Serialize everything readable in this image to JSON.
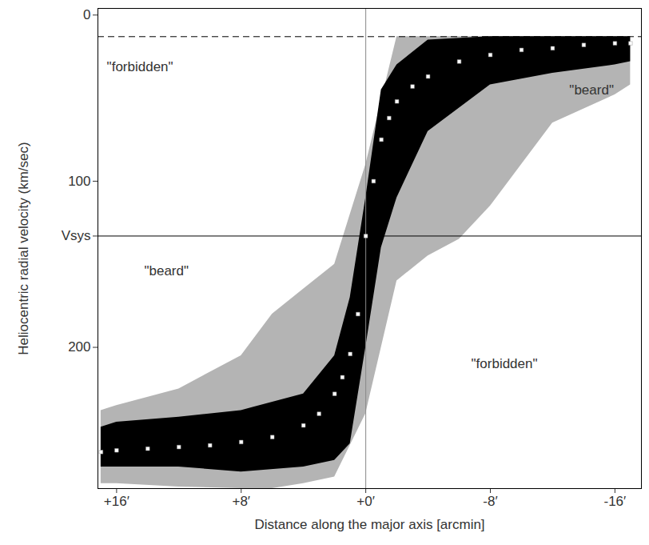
{
  "chart_data": {
    "type": "scatter",
    "x_label": "Distance along the major axis [arcmin]",
    "y_label": "Heliocentric radial velocity (km/sec)",
    "xlim": [
      17.2,
      -17.7
    ],
    "ylim": [
      -4,
      285
    ],
    "xticks": [
      {
        "value": 16,
        "label": "+16′"
      },
      {
        "value": 8,
        "label": "+8′"
      },
      {
        "value": 0,
        "label": "+0′"
      },
      {
        "value": -8,
        "label": "-8′"
      },
      {
        "value": -16,
        "label": "-16′"
      }
    ],
    "yticks": [
      0,
      100,
      {
        "value": 133,
        "label": "Vsys"
      },
      200
    ],
    "grid": false,
    "series": [
      {
        "color": "#ffffff",
        "marker": "square",
        "x": [
          17,
          16,
          14,
          12,
          10,
          8,
          6,
          4,
          3,
          2,
          1.5,
          1,
          0.5,
          0,
          -0.5,
          -1,
          -1.5,
          -2,
          -3,
          -4,
          -6,
          -8,
          -10,
          -12,
          -14,
          -16,
          -17
        ],
        "values": [
          263,
          262,
          261,
          260,
          259,
          257,
          254,
          247,
          240,
          228,
          218,
          204,
          180,
          133,
          100,
          75,
          62,
          52,
          43,
          37,
          28,
          24,
          21,
          20,
          18,
          17,
          17
        ]
      }
    ],
    "bands": [
      {
        "color": "#b4b4b4",
        "x": [
          17,
          16,
          12,
          8,
          6,
          4,
          2,
          0,
          -2,
          -4,
          -6,
          -8,
          -12,
          -16,
          -17
        ],
        "lower": [
          238,
          235,
          225,
          205,
          180,
          165,
          150,
          90,
          13,
          13,
          13,
          13,
          13,
          13,
          13
        ],
        "upper": [
          282,
          282,
          284,
          285,
          285,
          282,
          278,
          240,
          160,
          145,
          135,
          115,
          65,
          48,
          42
        ]
      },
      {
        "color": "#000000",
        "x": [
          17,
          16,
          12,
          8,
          4,
          2,
          1,
          0,
          -1,
          -2,
          -4,
          -8,
          -12,
          -16,
          -17
        ],
        "lower": [
          248,
          245,
          242,
          238,
          228,
          205,
          170,
          110,
          45,
          30,
          15,
          13,
          13,
          13,
          13
        ],
        "upper": [
          272,
          272,
          272,
          275,
          272,
          268,
          258,
          200,
          140,
          110,
          70,
          42,
          35,
          30,
          28
        ]
      }
    ],
    "hlines": [
      {
        "value": 133,
        "line_style": "solid"
      },
      {
        "value": 13,
        "line_style": "dashed"
      }
    ],
    "vlines": [
      {
        "value": 0,
        "line_style": "solid"
      }
    ],
    "annotations": [
      {
        "text": "\"forbidden\"",
        "x": 14.5,
        "y": 31
      },
      {
        "text": "\"beard\"",
        "x": -14.5,
        "y": 45
      },
      {
        "text": "\"beard\"",
        "x": 12.8,
        "y": 154
      },
      {
        "text": "\"forbidden\"",
        "x": -8.9,
        "y": 210
      }
    ]
  }
}
